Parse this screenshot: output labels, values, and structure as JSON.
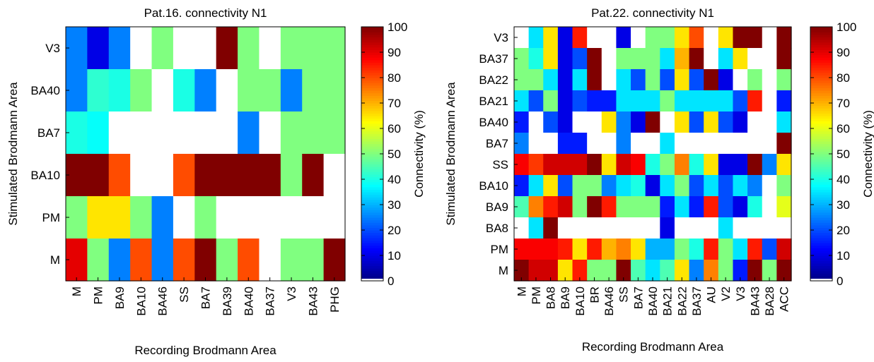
{
  "chart_data": [
    {
      "type": "heatmap",
      "title": "Pat.16. connectivity N1",
      "xlabel": "Recording Brodmann Area",
      "ylabel": "Stimulated Brodmann Area",
      "colorbar_label": "Connectivity (%)",
      "colorbar_ticks": [
        0,
        10,
        20,
        30,
        40,
        50,
        60,
        70,
        80,
        90,
        100
      ],
      "clim": [
        0,
        100
      ],
      "colormap": "jet-with-white-zero",
      "columns": [
        "M",
        "PM",
        "BA9",
        "BA10",
        "BA46",
        "SS",
        "BA7",
        "BA39",
        "BA40",
        "BA37",
        "V3",
        "BA43",
        "PHG"
      ],
      "rows": [
        "V3",
        "BA40",
        "BA7",
        "BA10",
        "PM",
        "M"
      ],
      "values": [
        [
          25,
          10,
          25,
          0,
          50,
          0,
          0,
          100,
          50,
          0,
          50,
          50,
          50
        ],
        [
          25,
          42,
          40,
          50,
          0,
          40,
          25,
          0,
          50,
          50,
          25,
          50,
          50
        ],
        [
          40,
          38,
          0,
          0,
          0,
          0,
          0,
          0,
          25,
          0,
          50,
          50,
          50
        ],
        [
          100,
          100,
          80,
          0,
          0,
          80,
          100,
          100,
          100,
          100,
          50,
          100,
          0
        ],
        [
          50,
          65,
          65,
          50,
          25,
          0,
          50,
          0,
          0,
          0,
          0,
          0,
          0
        ],
        [
          90,
          50,
          25,
          80,
          25,
          80,
          100,
          50,
          80,
          0,
          50,
          50,
          100
        ]
      ]
    },
    {
      "type": "heatmap",
      "title": "Pat.22. connectivity N1",
      "xlabel": "Recording Brodmann Area",
      "ylabel": "Stimulated Brodmann Area",
      "colorbar_label": "Connectivity (%)",
      "colorbar_ticks": [
        0,
        10,
        20,
        30,
        40,
        50,
        60,
        70,
        80,
        90,
        100
      ],
      "clim": [
        0,
        100
      ],
      "colormap": "jet-with-white-zero",
      "columns": [
        "M",
        "PM",
        "BA8",
        "BA9",
        "BA10",
        "BR",
        "BA46",
        "SS",
        "BA7",
        "BA40",
        "BA21",
        "BA22",
        "BA37",
        "AU",
        "V2",
        "V3",
        "BA43",
        "BA28",
        "ACC"
      ],
      "rows": [
        "V3",
        "BA37",
        "BA22",
        "BA21",
        "BA40",
        "BA7",
        "SS",
        "BA10",
        "BA9",
        "BA8",
        "PM",
        "M"
      ],
      "values": [
        [
          0,
          35,
          65,
          10,
          85,
          0,
          0,
          10,
          0,
          50,
          50,
          65,
          80,
          0,
          65,
          100,
          100,
          0,
          100
        ],
        [
          50,
          40,
          65,
          10,
          20,
          100,
          0,
          50,
          50,
          50,
          35,
          70,
          100,
          0,
          35,
          65,
          0,
          0,
          100
        ],
        [
          50,
          50,
          35,
          10,
          35,
          100,
          0,
          35,
          20,
          50,
          20,
          65,
          20,
          100,
          10,
          0,
          50,
          0,
          50
        ],
        [
          35,
          20,
          50,
          10,
          20,
          15,
          15,
          35,
          35,
          35,
          50,
          35,
          35,
          35,
          35,
          20,
          85,
          0,
          15
        ],
        [
          15,
          0,
          20,
          10,
          0,
          0,
          65,
          25,
          10,
          100,
          0,
          65,
          20,
          65,
          20,
          10,
          0,
          0,
          35
        ],
        [
          25,
          0,
          0,
          15,
          15,
          0,
          0,
          25,
          0,
          0,
          35,
          0,
          0,
          0,
          0,
          0,
          0,
          0,
          100
        ],
        [
          88,
          82,
          92,
          92,
          92,
          100,
          65,
          92,
          88,
          40,
          50,
          75,
          40,
          65,
          10,
          10,
          100,
          25,
          65
        ],
        [
          15,
          35,
          65,
          20,
          50,
          50,
          25,
          35,
          40,
          10,
          35,
          50,
          20,
          35,
          20,
          35,
          25,
          0,
          50
        ],
        [
          45,
          75,
          85,
          92,
          50,
          100,
          85,
          50,
          50,
          50,
          15,
          35,
          15,
          85,
          20,
          10,
          40,
          0,
          60
        ],
        [
          0,
          35,
          100,
          0,
          0,
          0,
          0,
          0,
          0,
          0,
          10,
          0,
          0,
          0,
          35,
          0,
          0,
          0,
          0
        ],
        [
          88,
          88,
          88,
          85,
          65,
          85,
          70,
          75,
          65,
          30,
          30,
          50,
          40,
          85,
          50,
          35,
          85,
          20,
          92
        ],
        [
          100,
          92,
          92,
          65,
          85,
          50,
          50,
          100,
          45,
          35,
          45,
          65,
          25,
          75,
          50,
          15,
          100,
          50,
          100
        ]
      ]
    }
  ]
}
